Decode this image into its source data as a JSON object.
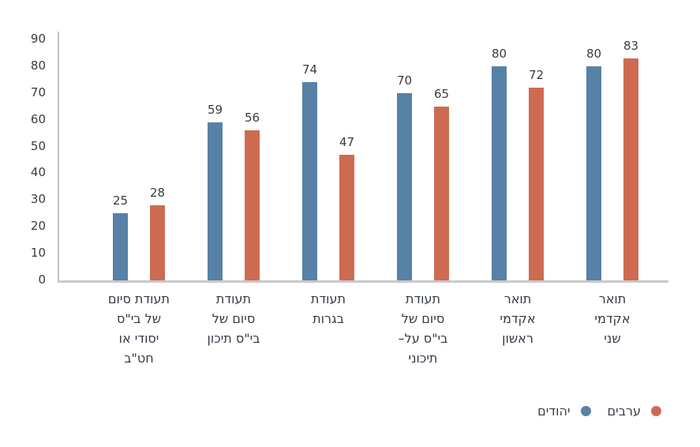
{
  "chart_data": {
    "type": "bar",
    "title": "",
    "xlabel": "",
    "ylabel": "",
    "ylim": [
      0,
      90
    ],
    "yticks": [
      0,
      10,
      20,
      30,
      40,
      50,
      60,
      70,
      80,
      90
    ],
    "grid": false,
    "legend_position": "bottom-right",
    "axis_color": "#c9c9c9",
    "categories": [
      {
        "label": "תעודת סיום של בי\"ס יסודי או חט\"ב",
        "lines": [
          "תעודת סיום",
          "של בי\"ס",
          "יסודי או",
          "חט\"ב"
        ]
      },
      {
        "label": "תעודת סיום של בי\"ס תיכון",
        "lines": [
          "תעודת",
          "סיום של",
          "בי\"ס תיכון"
        ]
      },
      {
        "label": "תעודת בגרות",
        "lines": [
          "תעודת",
          "בגרות"
        ]
      },
      {
        "label": "תעודת סיום של בי\"ס על-תיכוני",
        "lines": [
          "תעודת",
          "סיום של",
          "בי\"ס על–",
          "תיכוני"
        ]
      },
      {
        "label": "תואר אקדמי ראשון",
        "lines": [
          "תואר",
          "אקדמי",
          "ראשון"
        ]
      },
      {
        "label": "תואר אקדמי שני",
        "lines": [
          "תואר",
          "אקדמי",
          "שני"
        ]
      }
    ],
    "series": [
      {
        "name": "יהודים",
        "color": "#5781a6",
        "values": [
          25,
          59,
          74,
          70,
          80,
          80
        ]
      },
      {
        "name": "ערבים",
        "color": "#cd6b52",
        "values": [
          28,
          56,
          47,
          65,
          72,
          83
        ]
      }
    ]
  },
  "legend": {
    "items": [
      {
        "label": "ערבים",
        "color": "#cd6b52"
      },
      {
        "label": "יהודים",
        "color": "#5781a6"
      }
    ]
  }
}
